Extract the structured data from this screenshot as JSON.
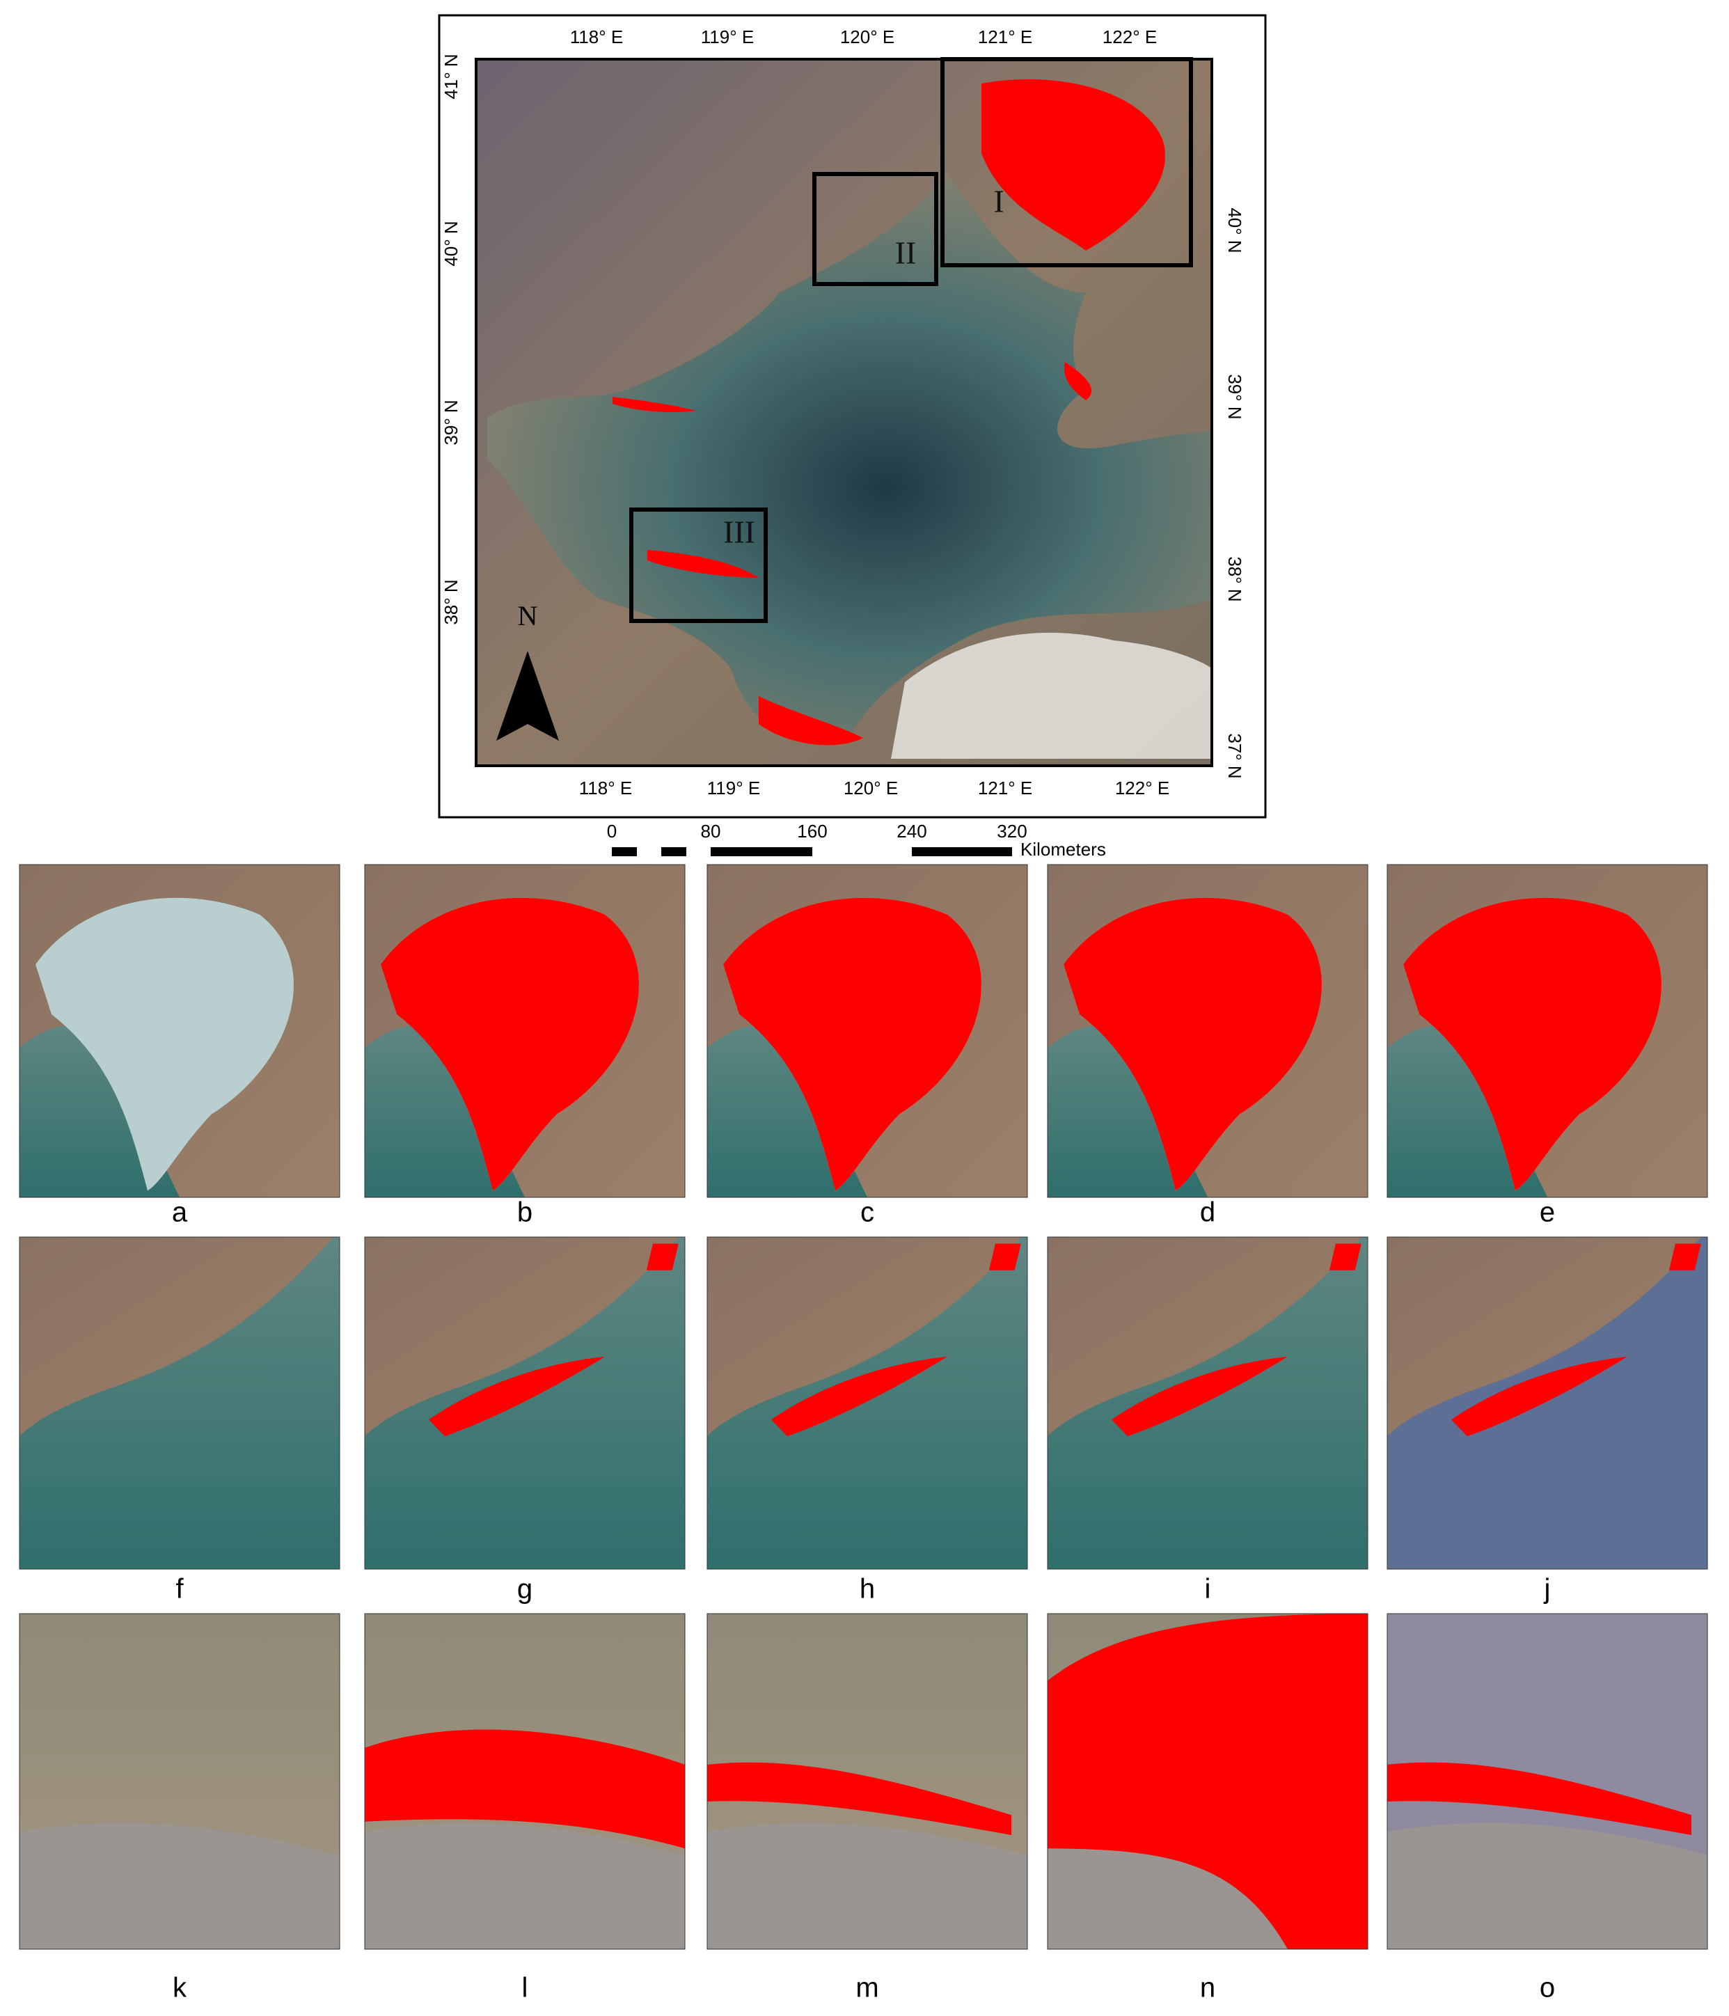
{
  "map": {
    "top_axis_labels": [
      "118° E",
      "119° E",
      "120° E",
      "121° E",
      "122° E"
    ],
    "bottom_axis_labels": [
      "118° E",
      "119° E",
      "120° E",
      "121° E",
      "122° E"
    ],
    "left_axis_labels": [
      "41° N",
      "40° N",
      "39° N",
      "38° N"
    ],
    "right_axis_labels": [
      "40° N",
      "39° N",
      "38° N",
      "37° N"
    ],
    "region_labels": [
      "I",
      "II",
      "III"
    ],
    "north_label": "N"
  },
  "scale_bar": {
    "ticks": [
      0,
      80,
      160,
      240,
      320
    ],
    "unit": "Kilometers"
  },
  "panels": [
    "a",
    "b",
    "c",
    "d",
    "e",
    "f",
    "g",
    "h",
    "i",
    "j",
    "k",
    "l",
    "m",
    "n",
    "o"
  ]
}
